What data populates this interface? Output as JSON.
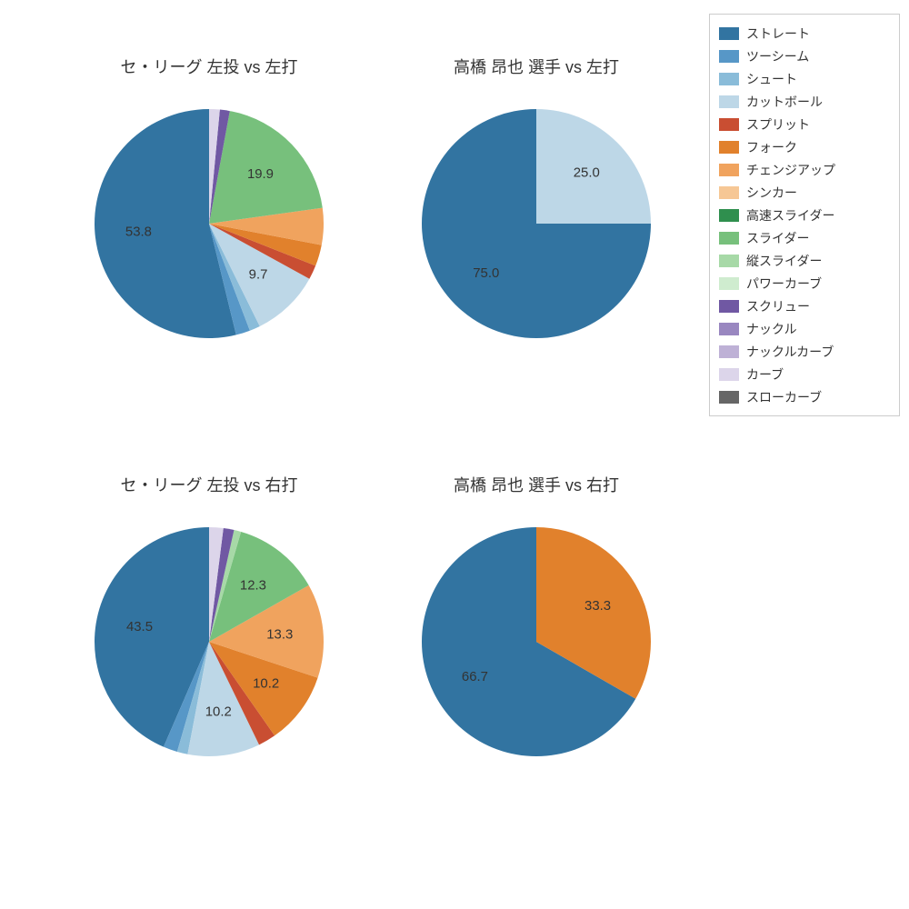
{
  "palette": {
    "straight": "#3274a1",
    "twoseam": "#5797c7",
    "shoot": "#8abcd9",
    "cutball": "#bdd7e7",
    "split": "#c94e32",
    "fork": "#e1812c",
    "changeup": "#f0a35e",
    "sinker": "#f6c795",
    "hislider": "#2f8f4e",
    "slider": "#77c07c",
    "vslider": "#a7d9a7",
    "powercurve": "#cfeccf",
    "screw": "#7058a3",
    "knuckle": "#9987c0",
    "knucklecurve": "#beb1d6",
    "curve": "#dcd5ea",
    "slowcurve": "#666666"
  },
  "legend": [
    {
      "key": "straight",
      "label": "ストレート"
    },
    {
      "key": "twoseam",
      "label": "ツーシーム"
    },
    {
      "key": "shoot",
      "label": "シュート"
    },
    {
      "key": "cutball",
      "label": "カットボール"
    },
    {
      "key": "split",
      "label": "スプリット"
    },
    {
      "key": "fork",
      "label": "フォーク"
    },
    {
      "key": "changeup",
      "label": "チェンジアップ"
    },
    {
      "key": "sinker",
      "label": "シンカー"
    },
    {
      "key": "hislider",
      "label": "高速スライダー"
    },
    {
      "key": "slider",
      "label": "スライダー"
    },
    {
      "key": "vslider",
      "label": "縦スライダー"
    },
    {
      "key": "powercurve",
      "label": "パワーカーブ"
    },
    {
      "key": "screw",
      "label": "スクリュー"
    },
    {
      "key": "knuckle",
      "label": "ナックル"
    },
    {
      "key": "knucklecurve",
      "label": "ナックルカーブ"
    },
    {
      "key": "curve",
      "label": "カーブ"
    },
    {
      "key": "slowcurve",
      "label": "スローカーブ"
    }
  ],
  "label_fontsize": 16,
  "title_fontsize": 18,
  "label_threshold": 7.0,
  "charts": [
    {
      "id": "tl",
      "title": "セ・リーグ 左投 vs 左打",
      "slices": [
        {
          "key": "straight",
          "value": 53.8,
          "label": "53.8"
        },
        {
          "key": "twoseam",
          "value": 2.0
        },
        {
          "key": "shoot",
          "value": 1.5
        },
        {
          "key": "cutball",
          "value": 9.7,
          "label": "9.7"
        },
        {
          "key": "split",
          "value": 2.0
        },
        {
          "key": "fork",
          "value": 3.0
        },
        {
          "key": "changeup",
          "value": 5.2
        },
        {
          "key": "slider",
          "value": 19.9,
          "label": "19.9"
        },
        {
          "key": "screw",
          "value": 1.4
        },
        {
          "key": "curve",
          "value": 1.5
        }
      ]
    },
    {
      "id": "tr",
      "title": "高橋 昂也 選手 vs 左打",
      "slices": [
        {
          "key": "straight",
          "value": 75.0,
          "label": "75.0"
        },
        {
          "key": "cutball",
          "value": 25.0,
          "label": "25.0"
        }
      ]
    },
    {
      "id": "bl",
      "title": "セ・リーグ 左投 vs 右打",
      "slices": [
        {
          "key": "straight",
          "value": 43.5,
          "label": "43.5"
        },
        {
          "key": "twoseam",
          "value": 2.0
        },
        {
          "key": "shoot",
          "value": 1.5
        },
        {
          "key": "cutball",
          "value": 10.2,
          "label": "10.2"
        },
        {
          "key": "split",
          "value": 2.5
        },
        {
          "key": "fork",
          "value": 10.2,
          "label": "10.2"
        },
        {
          "key": "changeup",
          "value": 13.3,
          "label": "13.3"
        },
        {
          "key": "slider",
          "value": 12.3,
          "label": "12.3"
        },
        {
          "key": "vslider",
          "value": 1.0
        },
        {
          "key": "screw",
          "value": 1.5
        },
        {
          "key": "curve",
          "value": 2.0
        }
      ]
    },
    {
      "id": "br",
      "title": "高橋 昂也 選手 vs 右打",
      "slices": [
        {
          "key": "straight",
          "value": 66.7,
          "label": "66.7"
        },
        {
          "key": "fork",
          "value": 33.3,
          "label": "33.3"
        }
      ]
    }
  ]
}
